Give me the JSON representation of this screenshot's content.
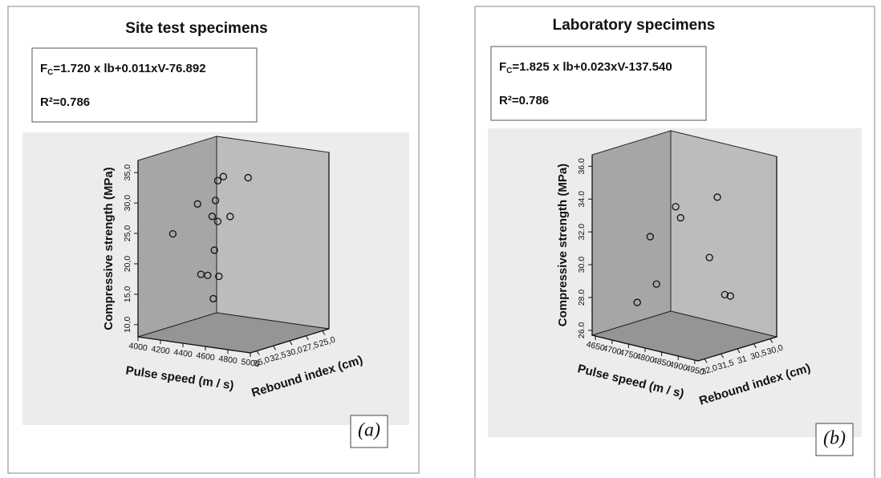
{
  "chart_data": [
    {
      "type": "scatter3d",
      "title": "Site test specimens",
      "equation": {
        "lhs": "F",
        "sub": "C",
        "rhs": "=1.720 x lb+0.011xV-76.892"
      },
      "r2": "R²=0.786",
      "panel_label": "(a)",
      "xlabel": "Pulse speed (m / s)",
      "ylabel": "Compressive strength (MPa)",
      "zlabel": "Rebound index (cm)",
      "xlim": [
        4000,
        5000
      ],
      "xticks": [
        4000,
        4200,
        4400,
        4600,
        4800,
        5000
      ],
      "zlim": [
        36,
        24
      ],
      "zticks": [
        {
          "value": 35,
          "label": "35,0"
        },
        {
          "value": 32.5,
          "label": "32,5"
        },
        {
          "value": 30,
          "label": "30,0"
        },
        {
          "value": 27.5,
          "label": "27,5"
        },
        {
          "value": 25,
          "label": "25,0"
        }
      ],
      "ylim": [
        8,
        37
      ],
      "yticks": [
        {
          "value": 10,
          "label": "10,0"
        },
        {
          "value": 15,
          "label": "15,0"
        },
        {
          "value": 20,
          "label": "20,0"
        },
        {
          "value": 25,
          "label": "25,0"
        },
        {
          "value": 30,
          "label": "30,0"
        },
        {
          "value": 35,
          "label": "35,0"
        }
      ],
      "x": [
        4100,
        4320,
        4350,
        4410,
        4450,
        4470,
        4480,
        4500,
        4500,
        4510,
        4460,
        4550,
        4610,
        4770
      ],
      "z": [
        32.4,
        32.4,
        32.4,
        32.4,
        32.4,
        32.4,
        32.4,
        32.4,
        32.4,
        32.4,
        32.4,
        32.4,
        32.4,
        32.4
      ],
      "y": [
        24.0,
        29.5,
        18.0,
        18.0,
        27.8,
        22.3,
        30.5,
        27.1,
        33.8,
        18.1,
        14.3,
        34.6,
        28.2,
        35.0
      ]
    },
    {
      "type": "scatter3d",
      "title": "Laboratory specimens",
      "equation": {
        "lhs": "F",
        "sub": "C",
        "rhs": "=1.825 x lb+0.023xV-137.540"
      },
      "r2": "R²=0.786",
      "panel_label": "(b)",
      "xlabel": "Pulse speed (m / s)",
      "ylabel": "Compressive strength (MPa)",
      "zlabel": "Rebound index (cm)",
      "xlim": [
        4640,
        4960
      ],
      "xticks": [
        4650,
        4700,
        4750,
        4800,
        4850,
        4900,
        4950
      ],
      "zlim": [
        32.2,
        29.8
      ],
      "zticks": [
        {
          "value": 32,
          "label": "32,0"
        },
        {
          "value": 31.5,
          "label": "31,5"
        },
        31,
        {
          "value": 30.5,
          "label": "30,5"
        },
        {
          "value": 30,
          "label": "30,0"
        }
      ],
      "ylim": [
        25.7,
        36.7
      ],
      "yticks": [
        {
          "value": 26,
          "label": "26.0"
        },
        {
          "value": 28,
          "label": "28.0"
        },
        {
          "value": 30,
          "label": "30.0"
        },
        {
          "value": 32,
          "label": "32.0"
        },
        {
          "value": 34,
          "label": "34.0"
        },
        {
          "value": 36,
          "label": "36.0"
        }
      ],
      "x": [
        4707,
        4746,
        4765,
        4823,
        4838,
        4925,
        4949,
        4902,
        4919
      ],
      "z": [
        31.5,
        31.5,
        31.5,
        31.5,
        31.5,
        31.5,
        31.5,
        30.8,
        30.8
      ],
      "y": [
        27.6,
        31.8,
        29.0,
        34.0,
        33.4,
        31.4,
        35.2,
        28.6,
        28.6
      ]
    }
  ]
}
